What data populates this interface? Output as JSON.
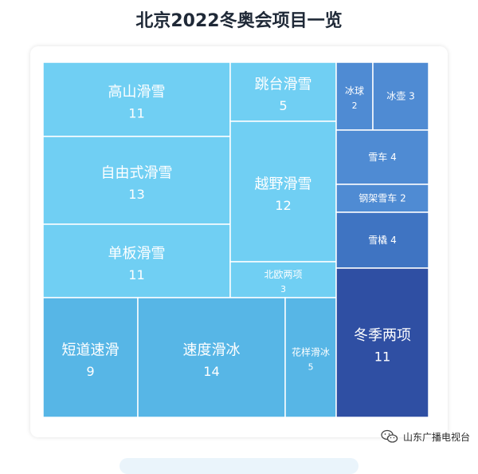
{
  "title": "北京2022冬奥会项目一览",
  "watermark": {
    "text": "山东广播电视台",
    "icon": "wechat-icon"
  },
  "colors": {
    "light": "#70cff3",
    "medium": "#57b6e6",
    "steel": "#4f8bd3",
    "deep": "#3f74c2",
    "navy": "#2f4fa3",
    "border": "#ffffff"
  },
  "chart_data": {
    "type": "treemap",
    "title": "北京2022冬奥会项目一览",
    "items": [
      {
        "name": "高山滑雪",
        "value": 11
      },
      {
        "name": "自由式滑雪",
        "value": 13
      },
      {
        "name": "单板滑雪",
        "value": 11
      },
      {
        "name": "跳台滑雪",
        "value": 5
      },
      {
        "name": "越野滑雪",
        "value": 12
      },
      {
        "name": "北欧两项",
        "value": 3
      },
      {
        "name": "短道速滑",
        "value": 9
      },
      {
        "name": "速度滑冰",
        "value": 14
      },
      {
        "name": "花样滑冰",
        "value": 5
      },
      {
        "name": "冰球",
        "value": 2
      },
      {
        "name": "冰壶",
        "value": 3
      },
      {
        "name": "雪车",
        "value": 4
      },
      {
        "name": "钢架雪车",
        "value": 2
      },
      {
        "name": "雪橇",
        "value": 4
      },
      {
        "name": "冬季两项",
        "value": 11
      }
    ]
  }
}
